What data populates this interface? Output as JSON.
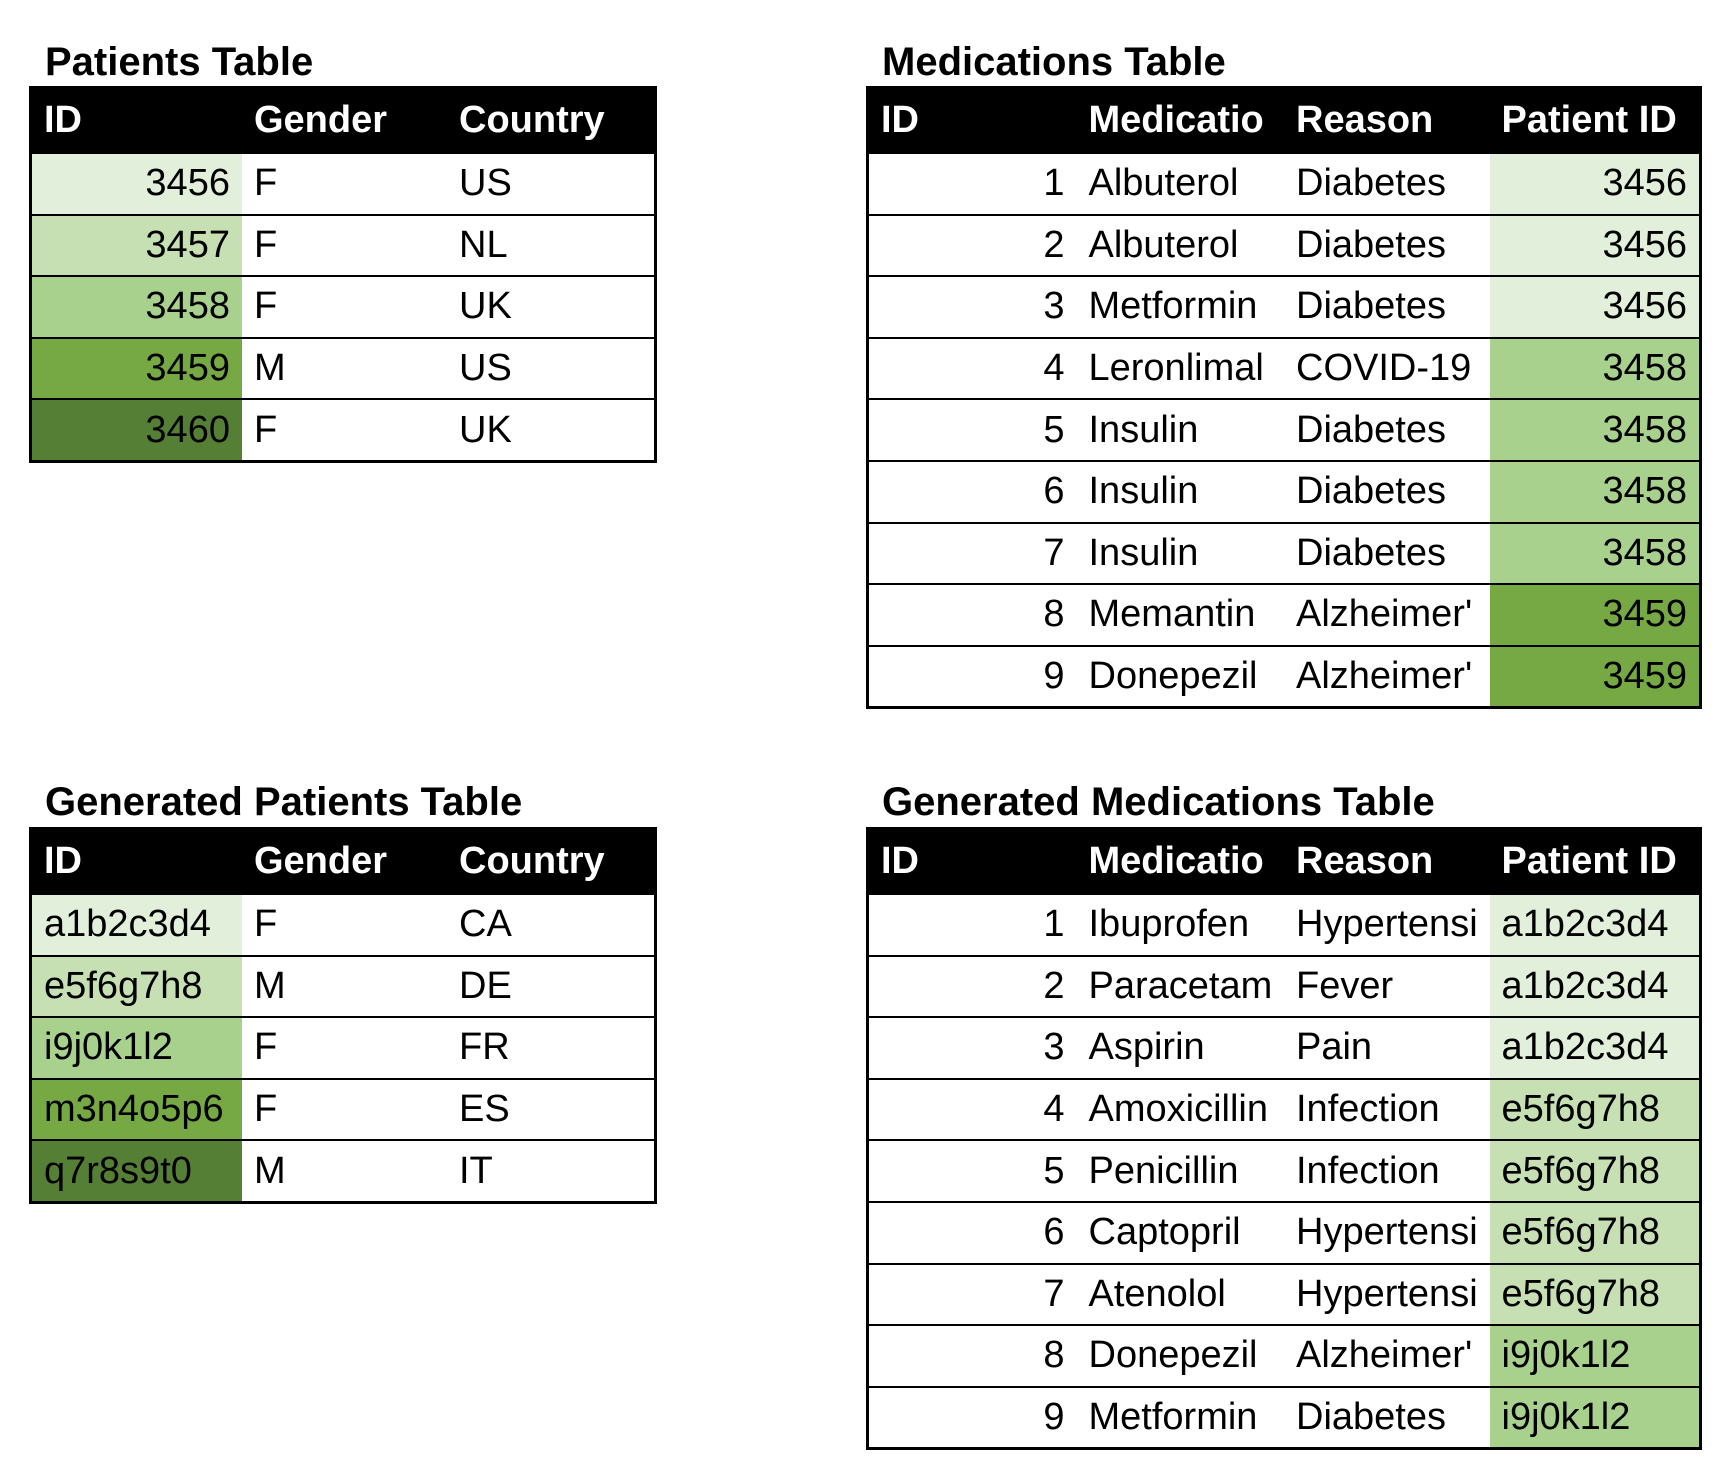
{
  "patients": {
    "title": "Patients Table",
    "columns": [
      "ID",
      "Gender",
      "Country"
    ],
    "rows": [
      [
        3456,
        "F",
        "US"
      ],
      [
        3457,
        "F",
        "NL"
      ],
      [
        3458,
        "F",
        "UK"
      ],
      [
        3459,
        "M",
        "US"
      ],
      [
        3460,
        "F",
        "UK"
      ]
    ],
    "fills": [
      "#e2efda",
      "#c6e0b4",
      "#a9d18e",
      "#76a843",
      "#567f36"
    ]
  },
  "medications": {
    "title": "Medications Table",
    "columns": [
      "ID",
      "Medicatio",
      "Reason",
      "Patient ID"
    ],
    "rows": [
      [
        1,
        "Albuterol",
        "Diabetes",
        3456
      ],
      [
        2,
        "Albuterol",
        "Diabetes",
        3456
      ],
      [
        3,
        "Metformin",
        "Diabetes",
        3456
      ],
      [
        4,
        "Leronlimal",
        "COVID-19",
        3458
      ],
      [
        5,
        "Insulin",
        "Diabetes",
        3458
      ],
      [
        6,
        "Insulin",
        "Diabetes",
        3458
      ],
      [
        7,
        "Insulin",
        "Diabetes",
        3458
      ],
      [
        8,
        "Memantin",
        "Alzheimer'",
        3459
      ],
      [
        9,
        "Donepezil",
        "Alzheimer'",
        3459
      ]
    ],
    "fills": [
      "#e2efda",
      "#e2efda",
      "#e2efda",
      "#a9d18e",
      "#a9d18e",
      "#a9d18e",
      "#a9d18e",
      "#76a843",
      "#76a843"
    ]
  },
  "generated_patients": {
    "title": "Generated Patients Table",
    "columns": [
      "ID",
      "Gender",
      "Country"
    ],
    "rows": [
      [
        "a1b2c3d4",
        "F",
        "CA"
      ],
      [
        "e5f6g7h8",
        "M",
        "DE"
      ],
      [
        "i9j0k1l2",
        "F",
        "FR"
      ],
      [
        "m3n4o5p6",
        "F",
        "ES"
      ],
      [
        "q7r8s9t0",
        "M",
        "IT"
      ]
    ],
    "fills": [
      "#e2efda",
      "#c6e0b4",
      "#a9d18e",
      "#76a843",
      "#567f36"
    ]
  },
  "generated_medications": {
    "title": "Generated Medications Table",
    "columns": [
      "ID",
      "Medicatio",
      "Reason",
      "Patient ID"
    ],
    "rows": [
      [
        1,
        "Ibuprofen",
        "Hypertensi",
        "a1b2c3d4"
      ],
      [
        2,
        "Paracetam",
        "Fever",
        "a1b2c3d4"
      ],
      [
        3,
        "Aspirin",
        "Pain",
        "a1b2c3d4"
      ],
      [
        4,
        "Amoxicillin",
        "Infection",
        "e5f6g7h8"
      ],
      [
        5,
        "Penicillin",
        "Infection",
        "e5f6g7h8"
      ],
      [
        6,
        "Captopril",
        "Hypertensi",
        "e5f6g7h8"
      ],
      [
        7,
        "Atenolol",
        "Hypertensi",
        "e5f6g7h8"
      ],
      [
        8,
        "Donepezil",
        "Alzheimer'",
        "i9j0k1l2"
      ],
      [
        9,
        "Metformin",
        "Diabetes",
        "i9j0k1l2"
      ]
    ],
    "fills": [
      "#e2efda",
      "#e2efda",
      "#e2efda",
      "#c6e0b4",
      "#c6e0b4",
      "#c6e0b4",
      "#c6e0b4",
      "#a9d18e",
      "#a9d18e"
    ]
  }
}
